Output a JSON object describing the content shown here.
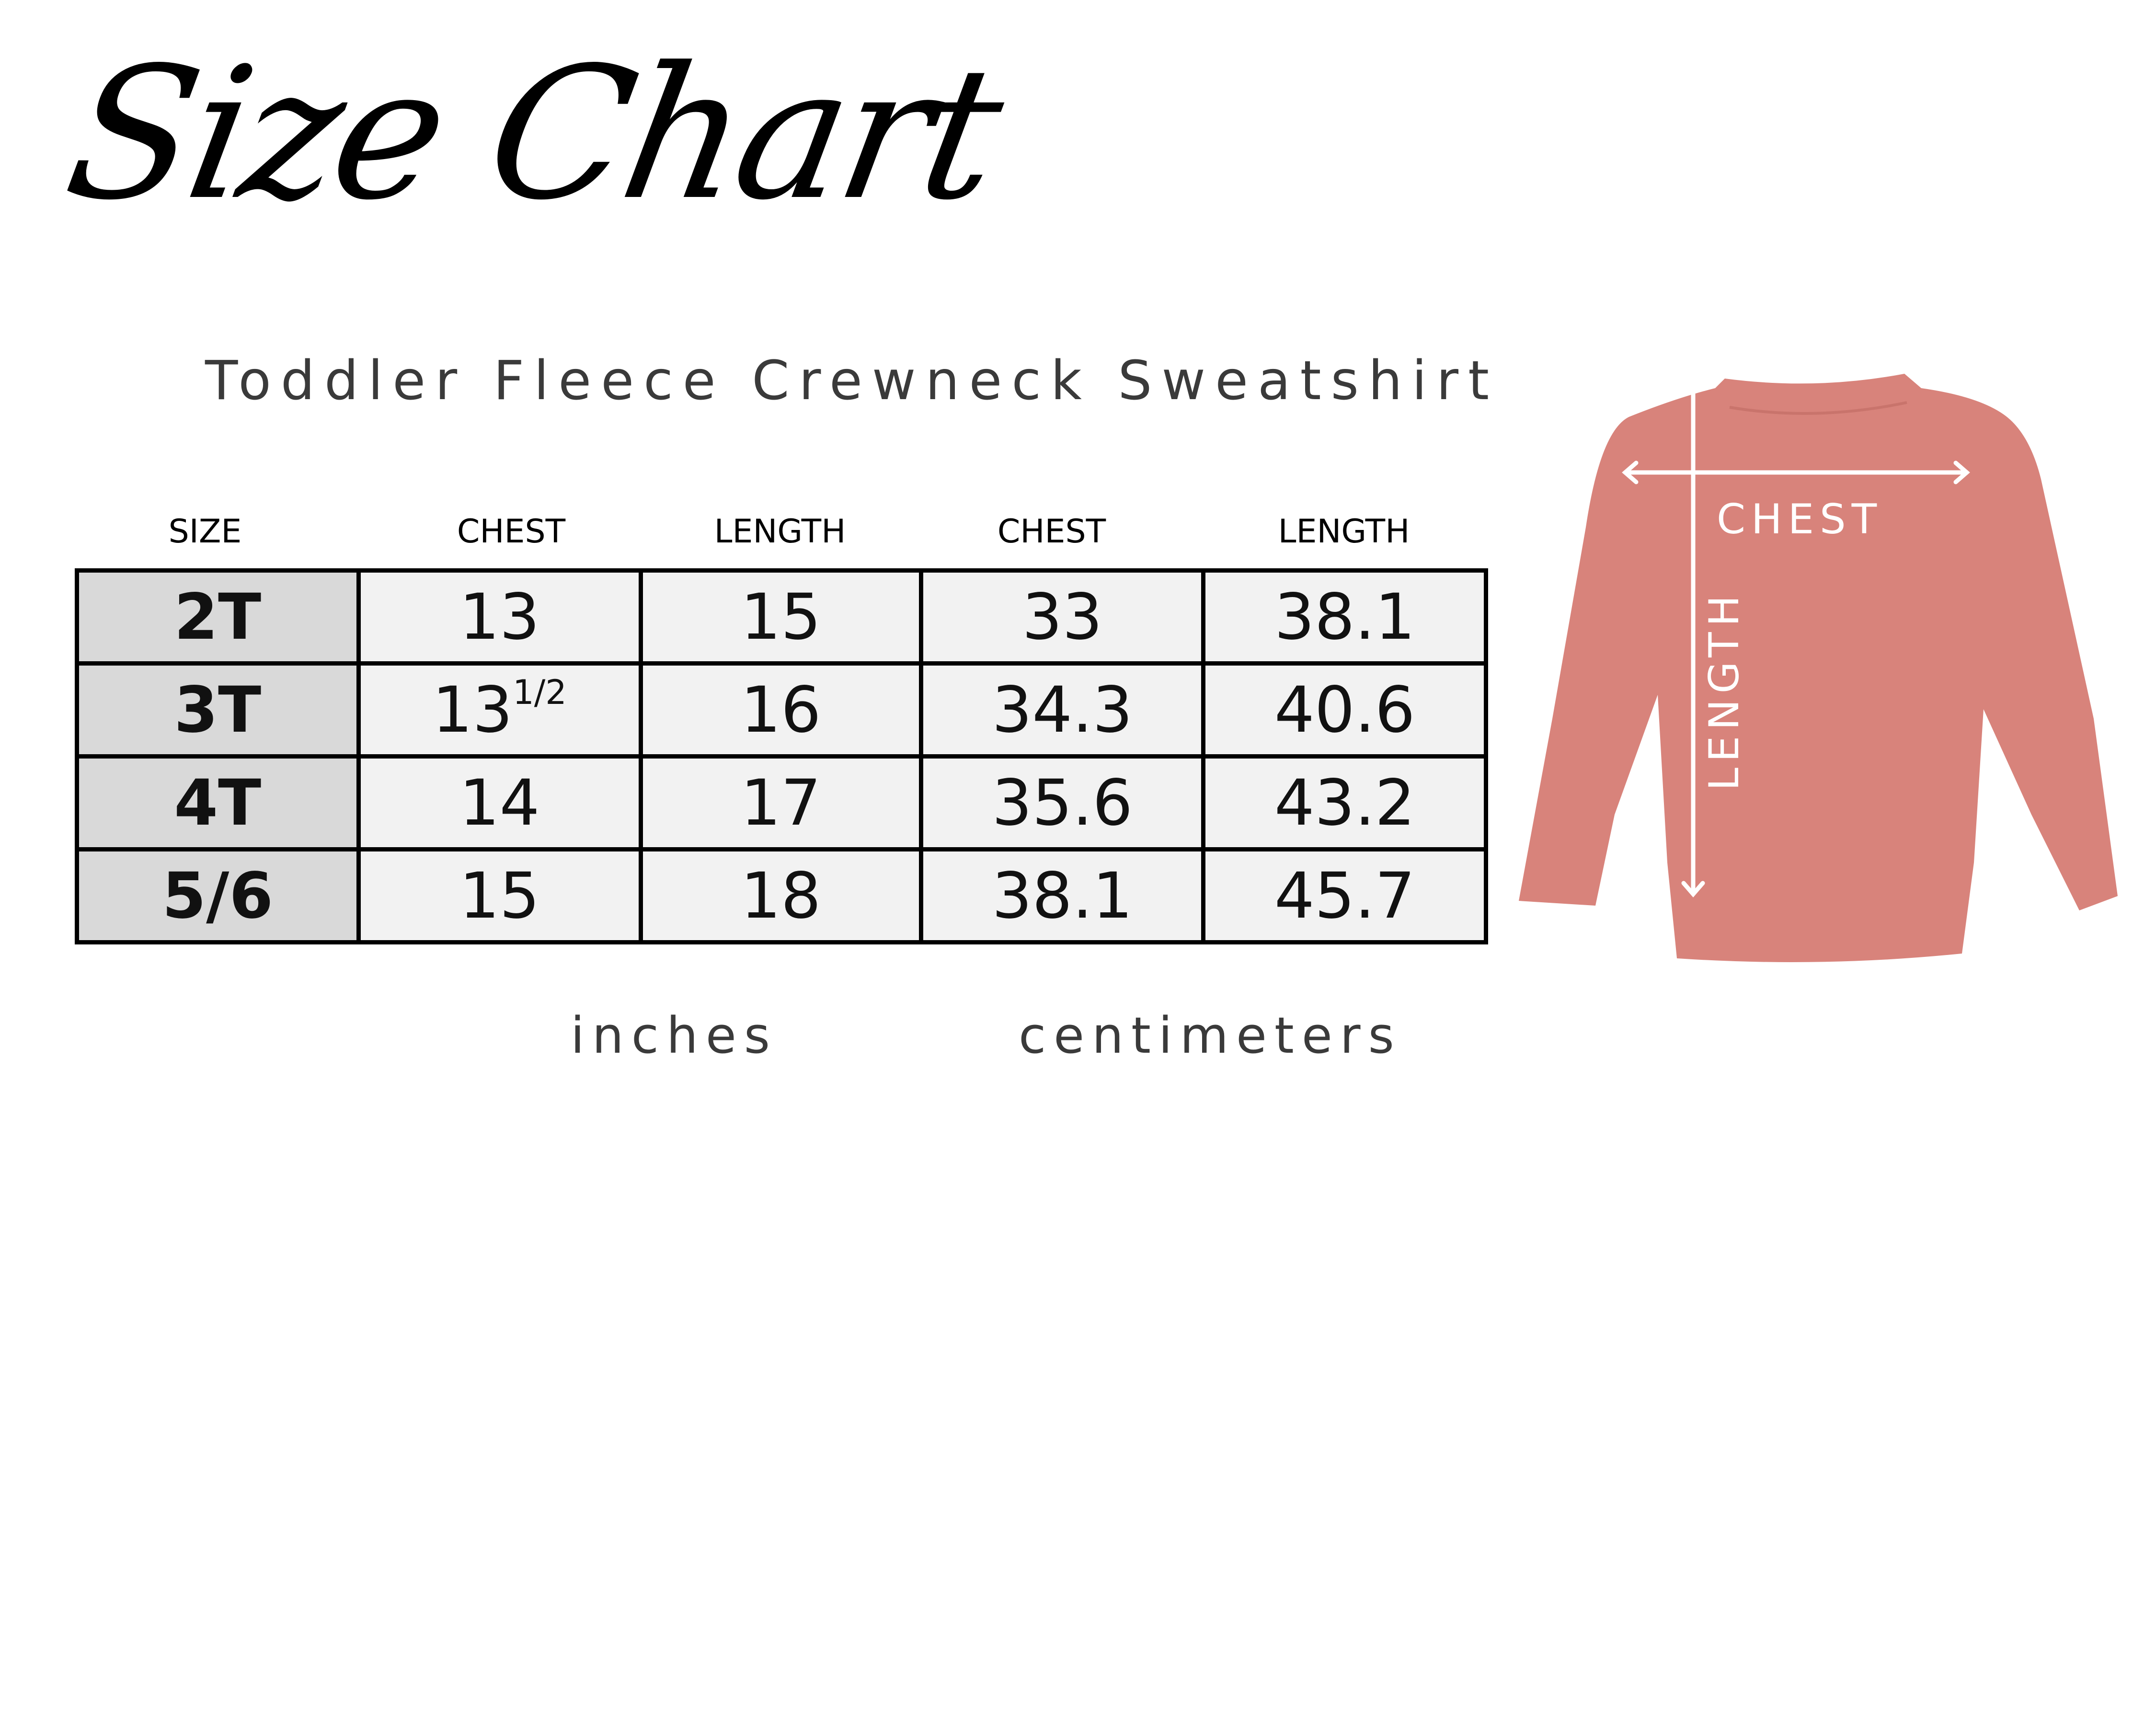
{
  "title": "Size Chart",
  "subtitle": "Toddler Fleece Crewneck Sweatshirt",
  "headers": [
    "SIZE",
    "CHEST",
    "LENGTH",
    "CHEST",
    "LENGTH"
  ],
  "rows": [
    {
      "size": "2T",
      "chest_in": "13",
      "chest_in_frac": "",
      "length_in": "15",
      "chest_cm": "33",
      "length_cm": "38.1"
    },
    {
      "size": "3T",
      "chest_in": "13",
      "chest_in_frac": "1/2",
      "length_in": "16",
      "chest_cm": "34.3",
      "length_cm": "40.6"
    },
    {
      "size": "4T",
      "chest_in": "14",
      "chest_in_frac": "",
      "length_in": "17",
      "chest_cm": "35.6",
      "length_cm": "43.2"
    },
    {
      "size": "5/6",
      "chest_in": "15",
      "chest_in_frac": "",
      "length_in": "18",
      "chest_cm": "38.1",
      "length_cm": "45.7"
    }
  ],
  "units": {
    "inches": "inches",
    "centimeters": "centimeters"
  },
  "diagram": {
    "chest_label": "CHEST",
    "length_label": "LENGTH",
    "garment_color": "#d8837b",
    "arrow_color": "#ffffff"
  }
}
